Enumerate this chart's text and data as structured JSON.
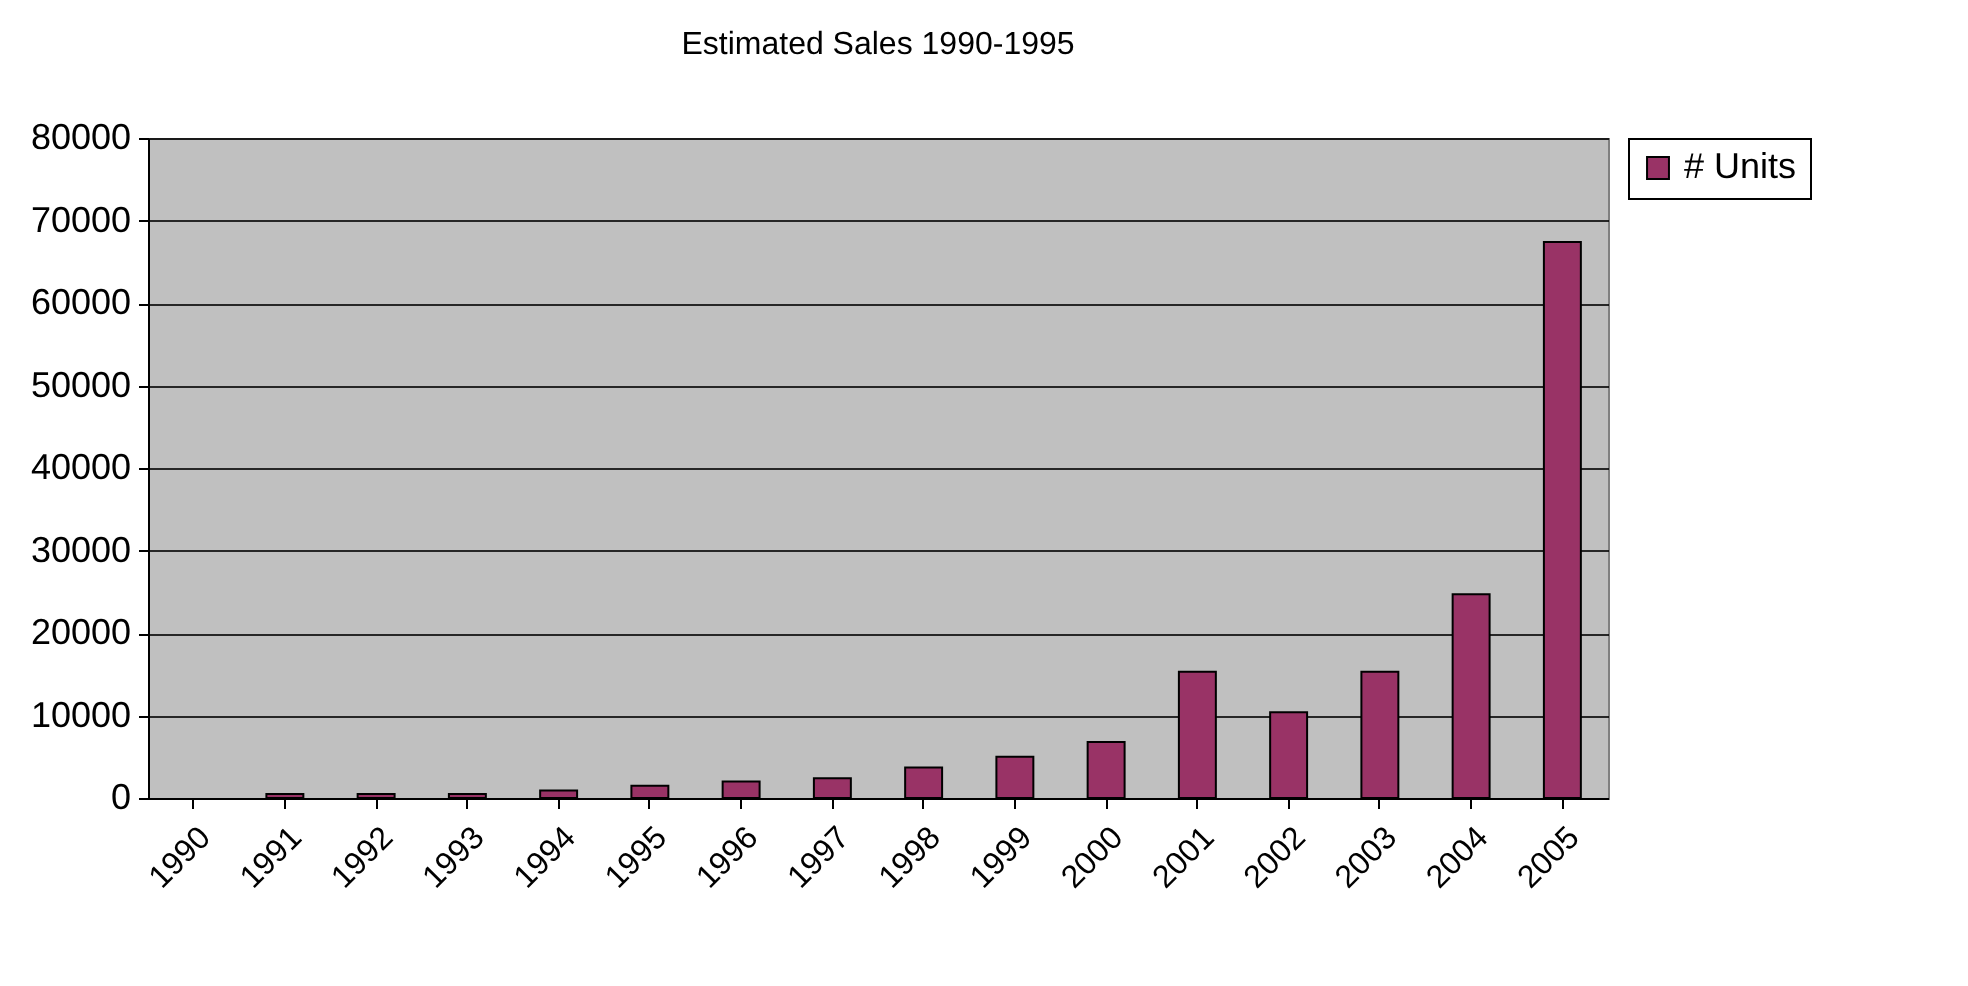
{
  "chart_data": {
    "type": "bar",
    "title": "Estimated Sales 1990-1995",
    "categories": [
      "1990",
      "1991",
      "1992",
      "1993",
      "1994",
      "1995",
      "1996",
      "1997",
      "1998",
      "1999",
      "2000",
      "2001",
      "2002",
      "2003",
      "2004",
      "2005"
    ],
    "series": [
      {
        "name": "# Units",
        "color": "#993366",
        "values": [
          null,
          500,
          500,
          500,
          900,
          1500,
          2000,
          2400,
          3700,
          5000,
          6800,
          15300,
          10400,
          15300,
          24700,
          67400
        ]
      }
    ],
    "ylim": [
      0,
      80000
    ],
    "yticks": [
      0,
      10000,
      20000,
      30000,
      40000,
      50000,
      60000,
      70000,
      80000
    ],
    "grid": "y",
    "legend": "right"
  }
}
